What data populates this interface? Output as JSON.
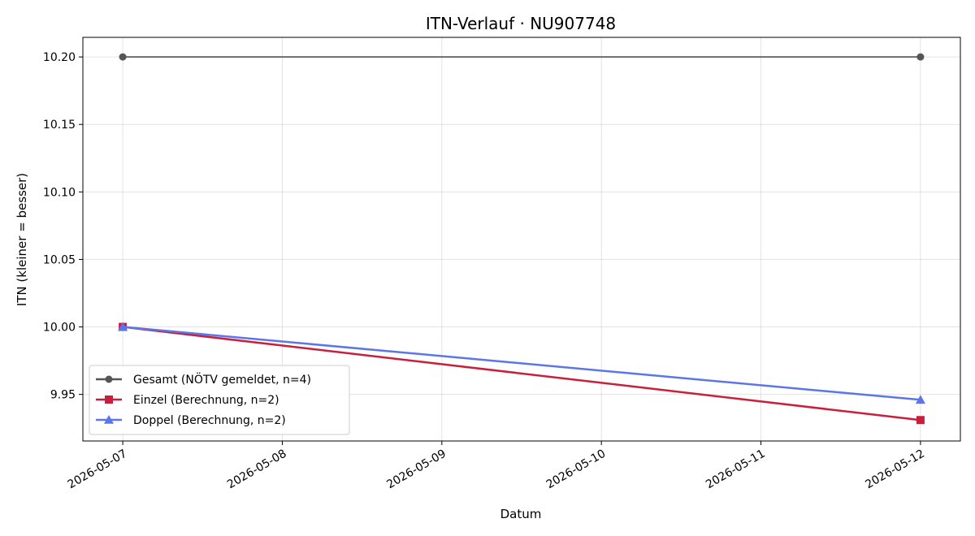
{
  "chart_data": {
    "type": "line",
    "title": "ITN-Verlauf · NU907748",
    "xlabel": "Datum",
    "ylabel": "ITN  (kleiner = besser)",
    "x_ticks": [
      "2026-05-07",
      "2026-05-08",
      "2026-05-09",
      "2026-05-10",
      "2026-05-11",
      "2026-05-12"
    ],
    "y_ticks": [
      "9.95",
      "10.00",
      "10.05",
      "10.10",
      "10.15",
      "10.20"
    ],
    "xlim": [
      "2026-05-06T18:00",
      "2026-05-12T06:00"
    ],
    "ylim": [
      9.9155,
      10.2145
    ],
    "grid": true,
    "legend_position": "lower-left",
    "series": [
      {
        "name": "Gesamt (NÖTV gemeldet, n=4)",
        "color": "#555555",
        "marker": "circle",
        "x": [
          "2026-05-07",
          "2026-05-12"
        ],
        "y": [
          10.2,
          10.2
        ]
      },
      {
        "name": "Einzel (Berechnung, n=2)",
        "color": "#c8203c",
        "marker": "square",
        "x": [
          "2026-05-07",
          "2026-05-12"
        ],
        "y": [
          10.0,
          9.931
        ]
      },
      {
        "name": "Doppel (Berechnung, n=2)",
        "color": "#5b76e8",
        "marker": "triangle",
        "x": [
          "2026-05-07",
          "2026-05-12"
        ],
        "y": [
          10.0,
          9.946
        ]
      }
    ]
  }
}
